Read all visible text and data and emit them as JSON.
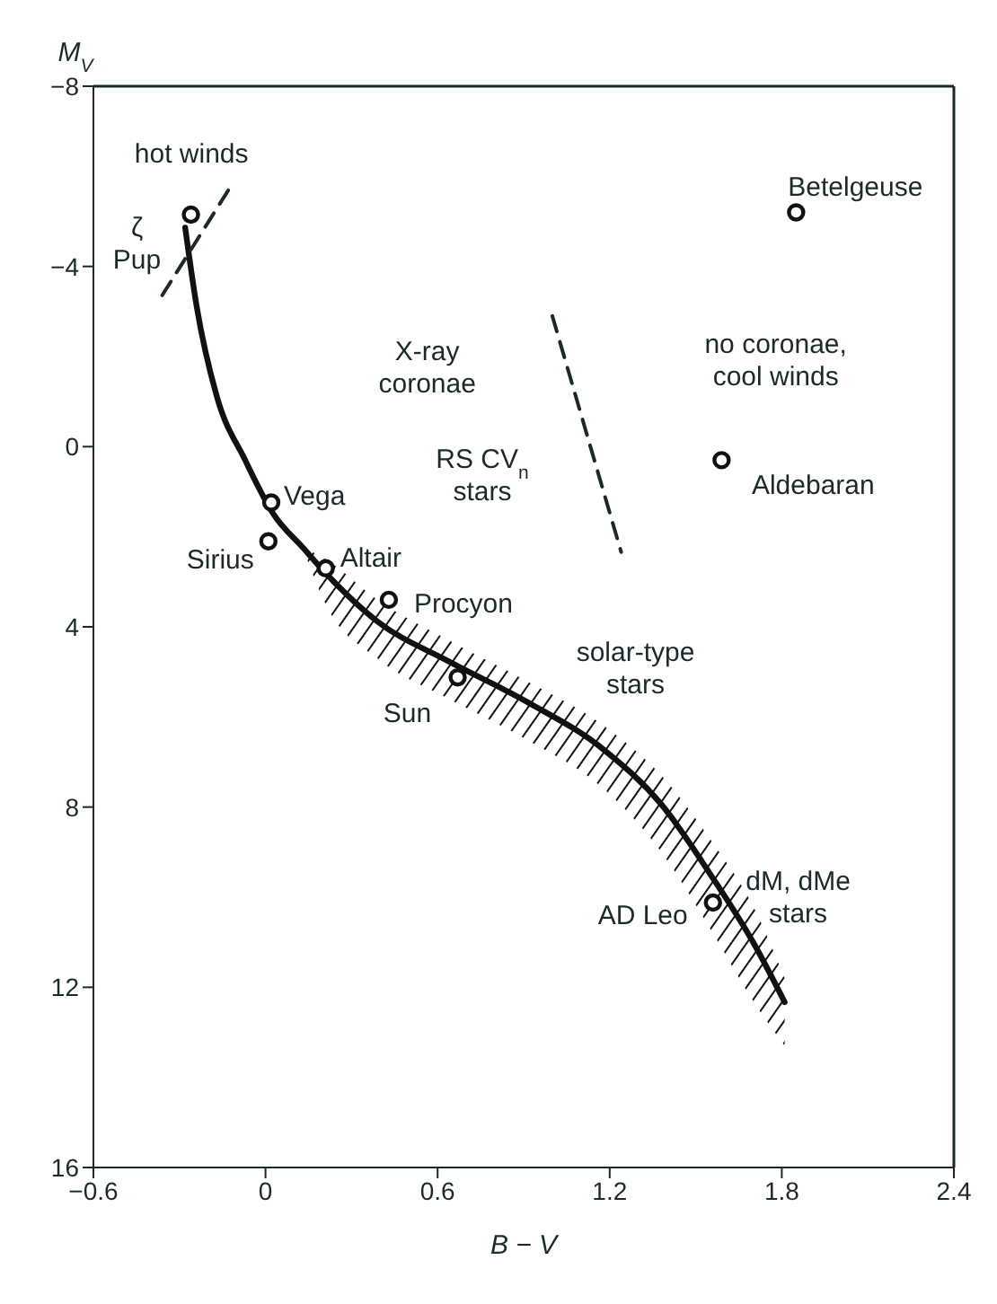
{
  "chart_data": {
    "type": "scatter",
    "xlabel": "B − V",
    "ylabel": "M$_{V}$",
    "xlim": [
      -0.6,
      2.4
    ],
    "xticks": [
      -0.6,
      0,
      0.6,
      1.2,
      1.8,
      2.4
    ],
    "ylim": [
      16,
      -8
    ],
    "yticks": [
      -8,
      -4,
      0,
      4,
      8,
      12,
      16
    ],
    "grid": false,
    "legend": false,
    "series": [
      {
        "type": "line",
        "color": "#111111",
        "line_style": "solid",
        "marker": "none",
        "x": [
          -0.28,
          -0.24,
          -0.17,
          -0.07,
          0.03,
          0.13,
          0.21,
          0.39,
          0.64,
          0.91,
          1.18,
          1.38,
          1.56,
          1.7,
          1.81
        ],
        "values": [
          -4.86,
          -3.11,
          -1.12,
          0.31,
          1.52,
          2.24,
          2.81,
          3.88,
          4.77,
          5.66,
          6.73,
          7.94,
          9.58,
          11.0,
          12.33
        ],
        "lower": [
          null,
          null,
          null,
          null,
          null,
          2.24,
          2.5,
          3.4,
          4.3,
          5.2,
          6.2,
          7.3,
          8.8,
          10.2,
          11.8
        ],
        "upper": [
          null,
          null,
          null,
          null,
          null,
          2.24,
          3.5,
          4.7,
          5.6,
          6.5,
          7.6,
          9.0,
          10.8,
          12.3,
          13.3
        ]
      },
      {
        "type": "line",
        "color": "#1a2a2a",
        "line_style": "dashed",
        "marker": "none",
        "x": [
          -0.36,
          -0.12
        ],
        "values": [
          -3.36,
          -5.79
        ]
      },
      {
        "type": "line",
        "color": "#1a2a2a",
        "line_style": "dashed",
        "marker": "none",
        "x": [
          1.0,
          1.24
        ],
        "values": [
          -2.9,
          2.34
        ]
      },
      {
        "color": "#111111",
        "marker": "circle",
        "x": [
          -0.26,
          1.85,
          1.59,
          0.02,
          0.01,
          0.21,
          0.43,
          0.67,
          1.56
        ],
        "values": [
          -5.15,
          -5.2,
          0.3,
          1.24,
          2.1,
          2.7,
          3.4,
          5.12,
          10.12
        ]
      }
    ],
    "annotations": [
      {
        "text": "ζ\nPup",
        "x": -0.26,
        "y": -5.15
      },
      {
        "text": "Betelgeuse",
        "x": 1.85,
        "y": -5.2
      },
      {
        "text": "Aldebaran",
        "x": 1.59,
        "y": 0.3
      },
      {
        "text": "Vega",
        "x": 0.02,
        "y": 1.24
      },
      {
        "text": "Sirius",
        "x": 0.01,
        "y": 2.1
      },
      {
        "text": "Altair",
        "x": 0.21,
        "y": 2.7
      },
      {
        "text": "Procyon",
        "x": 0.43,
        "y": 3.4
      },
      {
        "text": "Sun",
        "x": 0.67,
        "y": 5.12
      },
      {
        "text": "AD Leo",
        "x": 1.56,
        "y": 10.12
      },
      "hot winds",
      "X-ray\ncoronae",
      "RS CV$_{n}$\nstars",
      "no coronae,\ncool winds",
      "solar-type\nstars",
      "dM, dMe\nstars"
    ]
  }
}
